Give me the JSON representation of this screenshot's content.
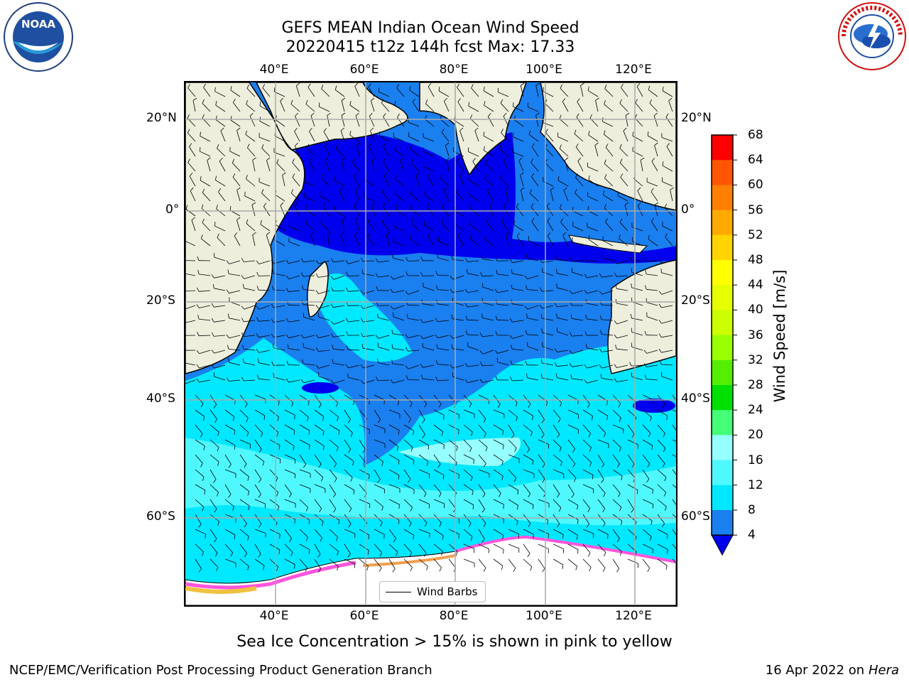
{
  "header": {
    "title_line1": "GEFS MEAN Indian Ocean Wind Speed",
    "title_line2": "20220415 t12z 144h fcst   Max: 17.33"
  },
  "map": {
    "lon_labels": [
      "40°E",
      "60°E",
      "80°E",
      "100°E",
      "120°E"
    ],
    "lat_labels": [
      "20°N",
      "0°",
      "20°S",
      "40°S",
      "60°S"
    ],
    "legend_label": "Wind Barbs",
    "colors": {
      "land": "#eeeedd",
      "ocean_4_8": "#1a7fef",
      "ocean_0_4": "#0000ee",
      "ocean_8_12": "#00e8ff",
      "ocean_12_16": "#4ff8ff",
      "ocean_16_20": "#96ffff",
      "ice": "#ffffff"
    }
  },
  "colorbar": {
    "label": "Wind Speed [m/s]",
    "ticks": [
      "68",
      "64",
      "60",
      "56",
      "52",
      "48",
      "44",
      "40",
      "36",
      "32",
      "28",
      "24",
      "20",
      "16",
      "12",
      "8",
      "4"
    ],
    "colors": [
      "#ff0000",
      "#ff2a00",
      "#ff5500",
      "#ff7f00",
      "#ffaa00",
      "#ffd400",
      "#ffff00",
      "#e6ff00",
      "#ccff00",
      "#99ff00",
      "#55ee00",
      "#00e000",
      "#44ff77",
      "#96ffff",
      "#4ff8ff",
      "#00e8ff",
      "#1a7fef"
    ],
    "under_color": "#0000ee"
  },
  "caption": "Sea Ice Concentration > 15% is shown in pink to yellow",
  "footer": {
    "left": "NCEP/EMC/Verification Post Processing Product Generation Branch",
    "right_date": "16 Apr 2022 on ",
    "right_host": "Hera"
  },
  "logos": {
    "noaa": {
      "text": "NOAA",
      "icon": "noaa-logo-icon"
    },
    "nws": {
      "text": "NATIONAL WEATHER SERVICE",
      "icon": "nws-logo-icon"
    }
  }
}
